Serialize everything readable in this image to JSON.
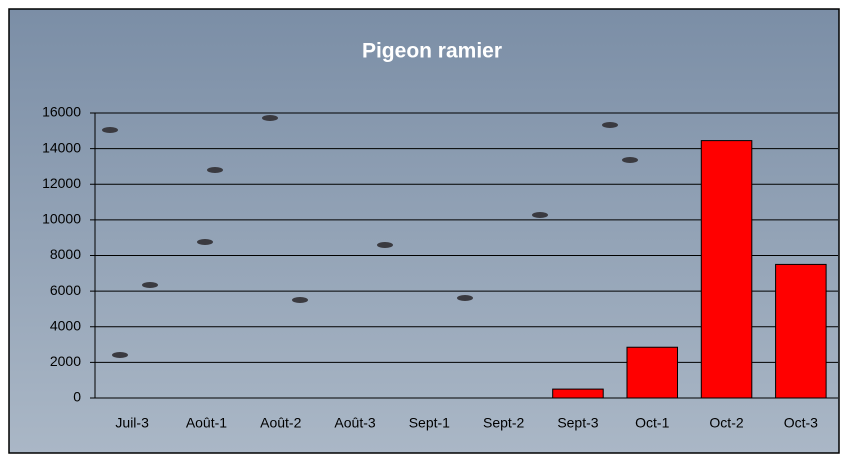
{
  "chart_data": {
    "type": "bar",
    "title": "Pigeon ramier",
    "categories": [
      "Juil-3",
      "Août-1",
      "Août-2",
      "Août-3",
      "Sept-1",
      "Sept-2",
      "Sept-3",
      "Oct-1",
      "Oct-2",
      "Oct-3"
    ],
    "values": [
      0,
      0,
      0,
      0,
      0,
      0,
      500,
      2850,
      14450,
      7500
    ],
    "color": "#ff0000",
    "ylim": [
      0,
      16000
    ],
    "yticks": [
      0,
      2000,
      4000,
      6000,
      8000,
      10000,
      12000,
      14000,
      16000
    ],
    "grid": true
  }
}
